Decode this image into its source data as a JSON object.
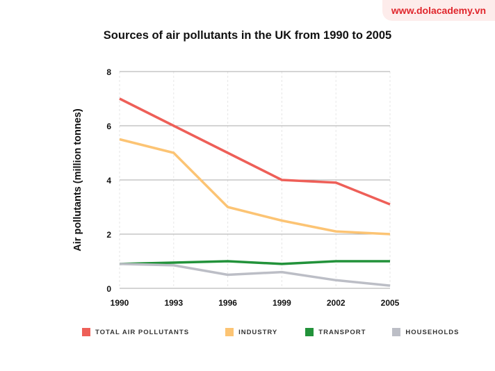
{
  "watermark": "www.dolacademy.vn",
  "chart_data": {
    "type": "line",
    "title": "Sources of air pollutants in the UK from 1990 to 2005",
    "xlabel": "",
    "ylabel": "Air pollutants (million tonnes)",
    "x": [
      1990,
      1993,
      1996,
      1999,
      2002,
      2005
    ],
    "x_tick_labels": [
      "1990",
      "1993",
      "1996",
      "1999",
      "2002",
      "2005"
    ],
    "y_tick_labels": [
      "0",
      "2",
      "4",
      "6",
      "8"
    ],
    "ylim": [
      0,
      8
    ],
    "grid": true,
    "legend_placement": "bottom",
    "series": [
      {
        "name": "TOTAL AIR POLLUTANTS",
        "color": "#ee5f58",
        "values": [
          7,
          6,
          5,
          4,
          3.9,
          3.1
        ]
      },
      {
        "name": "INDUSTRY",
        "color": "#fcc474",
        "values": [
          5.5,
          5,
          3,
          2.5,
          2.1,
          2
        ]
      },
      {
        "name": "TRANSPORT",
        "color": "#22923a",
        "values": [
          0.9,
          0.95,
          1,
          0.9,
          1,
          1
        ]
      },
      {
        "name": "HOUSEHOLDS",
        "color": "#bcbec6",
        "values": [
          0.9,
          0.85,
          0.5,
          0.6,
          0.3,
          0.1
        ]
      }
    ]
  }
}
